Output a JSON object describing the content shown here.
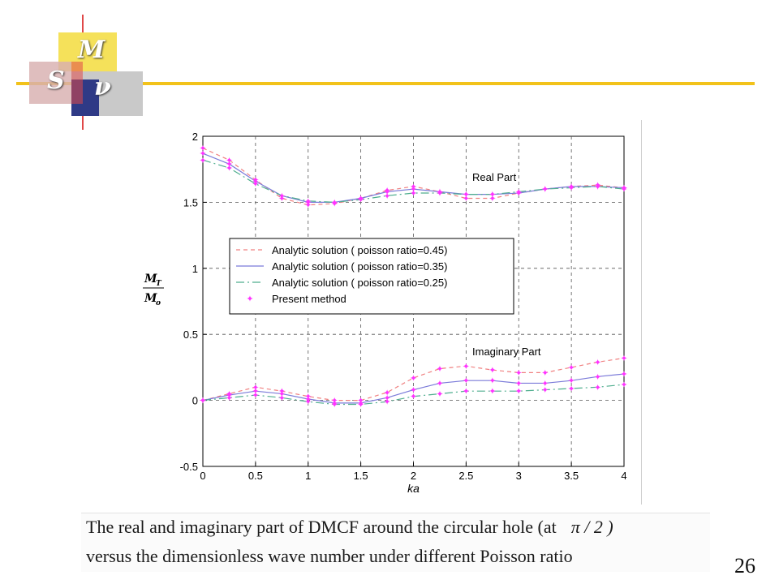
{
  "logo": {
    "letters": {
      "m": "M",
      "s": "S",
      "v": "ν"
    },
    "colors": {
      "yellow": "#f5e15a",
      "red": "#e04848",
      "navy": "#2f3a86",
      "gray": "#c9c9c9",
      "line": "#f2c21a"
    }
  },
  "chart_data": {
    "type": "line",
    "xlabel": "ka",
    "ylabel_top": "M",
    "ylabel_top_sub": "T",
    "ylabel_bottom": "M",
    "ylabel_bottom_sub": "o",
    "xlim": [
      0,
      4
    ],
    "ylim": [
      -0.5,
      2
    ],
    "xticks": [
      0,
      0.5,
      1,
      1.5,
      2,
      2.5,
      3,
      3.5,
      4
    ],
    "xtick_labels": [
      "0",
      "0.5",
      "1",
      "1.5",
      "2",
      "2.5",
      "3",
      "3.5",
      "4"
    ],
    "yticks": [
      -0.5,
      0,
      0.5,
      1,
      1.5,
      2
    ],
    "ytick_labels": [
      "-0.5",
      "0",
      "0.5",
      "1",
      "1.5",
      "2"
    ],
    "grid": true,
    "legend_placement": "center-left",
    "annotations": {
      "real": "Real Part",
      "imag": "Imaginary Part"
    },
    "series": [
      {
        "name": "Analytic solution ( poisson ratio=0.45)",
        "style": "dashed",
        "color": "#f08080",
        "real": [
          [
            0,
            1.91
          ],
          [
            0.25,
            1.82
          ],
          [
            0.5,
            1.67
          ],
          [
            0.75,
            1.53
          ],
          [
            1,
            1.48
          ],
          [
            1.25,
            1.49
          ],
          [
            1.5,
            1.53
          ],
          [
            1.75,
            1.59
          ],
          [
            2,
            1.62
          ],
          [
            2.25,
            1.58
          ],
          [
            2.5,
            1.53
          ],
          [
            2.75,
            1.53
          ],
          [
            3,
            1.57
          ],
          [
            3.25,
            1.6
          ],
          [
            3.5,
            1.62
          ],
          [
            3.75,
            1.63
          ],
          [
            4,
            1.61
          ]
        ],
        "imag": [
          [
            0,
            0
          ],
          [
            0.25,
            0.05
          ],
          [
            0.5,
            0.1
          ],
          [
            0.75,
            0.07
          ],
          [
            1,
            0.03
          ],
          [
            1.25,
            0
          ],
          [
            1.5,
            0
          ],
          [
            1.75,
            0.06
          ],
          [
            2,
            0.17
          ],
          [
            2.25,
            0.24
          ],
          [
            2.5,
            0.26
          ],
          [
            2.75,
            0.23
          ],
          [
            3,
            0.21
          ],
          [
            3.25,
            0.21
          ],
          [
            3.5,
            0.25
          ],
          [
            3.75,
            0.29
          ],
          [
            4,
            0.32
          ]
        ]
      },
      {
        "name": "Analytic solution ( poisson ratio=0.35)",
        "style": "solid",
        "color": "#7b7bd9",
        "real": [
          [
            0,
            1.87
          ],
          [
            0.25,
            1.79
          ],
          [
            0.5,
            1.66
          ],
          [
            0.75,
            1.55
          ],
          [
            1,
            1.5
          ],
          [
            1.25,
            1.5
          ],
          [
            1.5,
            1.53
          ],
          [
            1.75,
            1.58
          ],
          [
            2,
            1.6
          ],
          [
            2.25,
            1.58
          ],
          [
            2.5,
            1.56
          ],
          [
            2.75,
            1.56
          ],
          [
            3,
            1.57
          ],
          [
            3.25,
            1.6
          ],
          [
            3.5,
            1.62
          ],
          [
            3.75,
            1.62
          ],
          [
            4,
            1.61
          ]
        ],
        "imag": [
          [
            0,
            0
          ],
          [
            0.25,
            0.04
          ],
          [
            0.5,
            0.07
          ],
          [
            0.75,
            0.05
          ],
          [
            1,
            0.01
          ],
          [
            1.25,
            -0.02
          ],
          [
            1.5,
            -0.02
          ],
          [
            1.75,
            0.02
          ],
          [
            2,
            0.08
          ],
          [
            2.25,
            0.13
          ],
          [
            2.5,
            0.15
          ],
          [
            2.75,
            0.15
          ],
          [
            3,
            0.13
          ],
          [
            3.25,
            0.13
          ],
          [
            3.5,
            0.15
          ],
          [
            3.75,
            0.18
          ],
          [
            4,
            0.2
          ]
        ]
      },
      {
        "name": "Analytic solution ( poisson ratio=0.25)",
        "style": "dashdot",
        "color": "#4fae8e",
        "real": [
          [
            0,
            1.82
          ],
          [
            0.25,
            1.76
          ],
          [
            0.5,
            1.64
          ],
          [
            0.75,
            1.55
          ],
          [
            1,
            1.51
          ],
          [
            1.25,
            1.5
          ],
          [
            1.5,
            1.52
          ],
          [
            1.75,
            1.55
          ],
          [
            2,
            1.57
          ],
          [
            2.25,
            1.57
          ],
          [
            2.5,
            1.56
          ],
          [
            2.75,
            1.56
          ],
          [
            3,
            1.58
          ],
          [
            3.25,
            1.6
          ],
          [
            3.5,
            1.61
          ],
          [
            3.75,
            1.62
          ],
          [
            4,
            1.6
          ]
        ],
        "imag": [
          [
            0,
            0
          ],
          [
            0.25,
            0.02
          ],
          [
            0.5,
            0.04
          ],
          [
            0.75,
            0.02
          ],
          [
            1,
            -0.01
          ],
          [
            1.25,
            -0.03
          ],
          [
            1.5,
            -0.03
          ],
          [
            1.75,
            -0.01
          ],
          [
            2,
            0.03
          ],
          [
            2.25,
            0.05
          ],
          [
            2.5,
            0.07
          ],
          [
            2.75,
            0.07
          ],
          [
            3,
            0.07
          ],
          [
            3.25,
            0.08
          ],
          [
            3.5,
            0.09
          ],
          [
            3.75,
            0.1
          ],
          [
            4,
            0.12
          ]
        ]
      },
      {
        "name": "Present method",
        "style": "markers",
        "color": "#ff33ff"
      }
    ]
  },
  "caption": {
    "line1": "The real and imaginary part of DMCF around the circular hole (at",
    "line1_symbol": "π / 2 )",
    "line2": "versus the dimensionless wave number under different Poisson ratio"
  },
  "page_number": "26"
}
